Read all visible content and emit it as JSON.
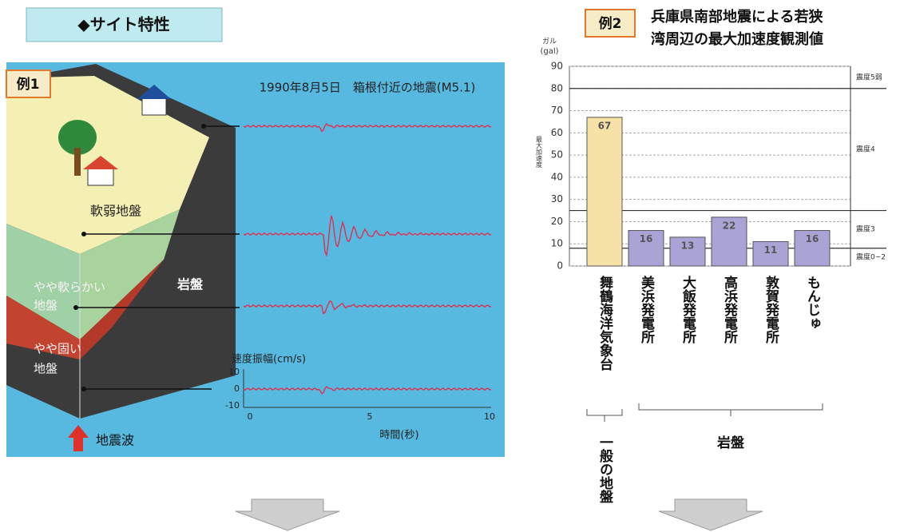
{
  "header": {
    "title": "◆サイト特性"
  },
  "example1": {
    "label": "例1",
    "caption": "1990年8月5日　箱根付近の地震(M5.1)",
    "layers": {
      "soft": "軟弱地盤",
      "medium_soft": [
        "やや軟らかい",
        "地盤"
      ],
      "medium_hard": [
        "やや固い",
        "地盤"
      ],
      "rock": "岩盤"
    },
    "velocity": {
      "label": "速度振幅(cm/s)",
      "yticks": [
        10,
        0,
        -10
      ],
      "xticks": [
        0,
        5,
        10
      ],
      "xlabel": "時間(秒)"
    },
    "wave_label": "地震波"
  },
  "chart_data": {
    "type": "bar",
    "label": "例2",
    "title": [
      "兵庫県南部地震による若狭",
      "湾周辺の最大加速度観測値"
    ],
    "y_unit": [
      "ガル",
      "(gal)"
    ],
    "ylabel": "最大加速度",
    "categories": [
      "舞鶴海洋気象台",
      "美浜発電所",
      "大飯発電所",
      "高浜発電所",
      "敦賀発電所",
      "もんじゅ"
    ],
    "values": [
      67,
      16,
      13,
      22,
      11,
      16
    ],
    "colors": [
      "#f6e2a6",
      "#aaa4d6",
      "#aaa4d6",
      "#aaa4d6",
      "#aaa4d6",
      "#aaa4d6"
    ],
    "ylim": [
      0,
      90
    ],
    "yticks": [
      0,
      10,
      20,
      30,
      40,
      50,
      60,
      70,
      80,
      90
    ],
    "grid": true,
    "intensity": {
      "bounds": [
        8,
        25,
        80
      ],
      "labels": [
        "震度0~2",
        "震度3",
        "震度4",
        "震度5弱"
      ]
    },
    "groups": [
      "一般の地盤",
      "岩盤"
    ]
  }
}
